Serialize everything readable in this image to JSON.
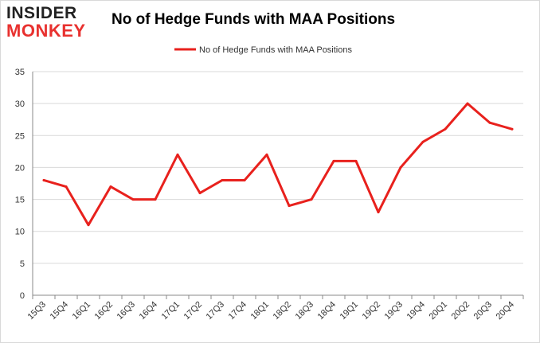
{
  "logo": {
    "line1": "INSIDER",
    "line2": "MONKEY"
  },
  "chart_data": {
    "type": "line",
    "title": "No of Hedge Funds with MAA Positions",
    "xlabel": "",
    "ylabel": "",
    "categories": [
      "15Q3",
      "15Q4",
      "16Q1",
      "16Q2",
      "16Q3",
      "16Q4",
      "17Q1",
      "17Q2",
      "17Q3",
      "17Q4",
      "18Q1",
      "18Q2",
      "18Q3",
      "18Q4",
      "19Q1",
      "19Q2",
      "19Q3",
      "19Q4",
      "20Q1",
      "20Q2",
      "20Q3",
      "20Q4"
    ],
    "series": [
      {
        "name": "No of Hedge Funds with MAA Positions",
        "values": [
          18,
          17,
          11,
          17,
          15,
          15,
          22,
          16,
          18,
          18,
          22,
          14,
          15,
          21,
          21,
          13,
          20,
          24,
          26,
          30,
          27,
          26
        ]
      }
    ],
    "ylim": [
      0,
      35
    ],
    "yticks": [
      0,
      5,
      10,
      15,
      20,
      25,
      30,
      35
    ],
    "grid": true,
    "legend": "top-center",
    "colors": {
      "line": "#e8211d",
      "grid": "#d9d9d9",
      "axis": "#888888",
      "text": "#333333"
    }
  }
}
